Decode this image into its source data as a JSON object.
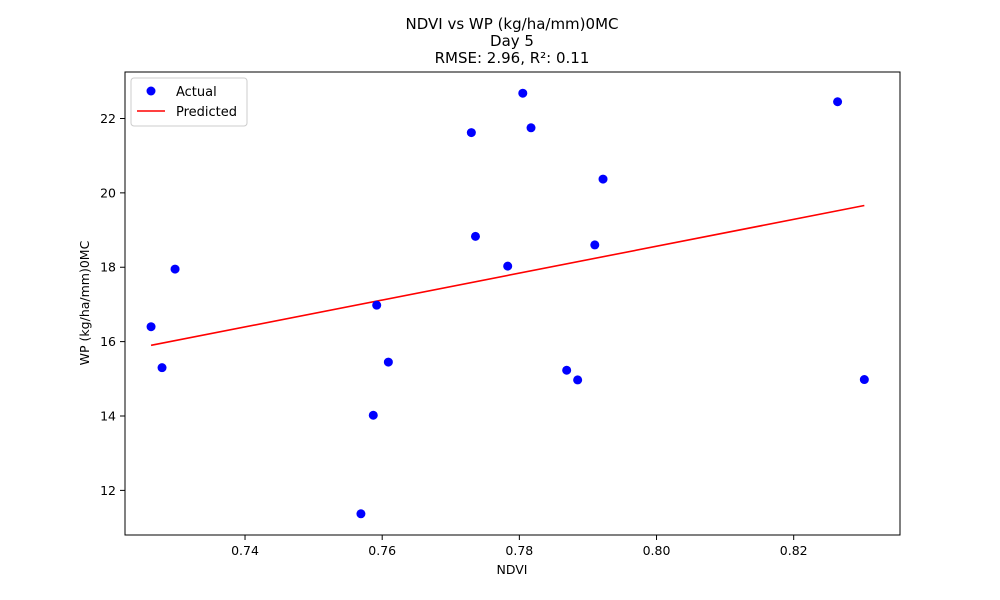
{
  "chart_data": {
    "type": "scatter",
    "title": [
      "NDVI vs WP (kg/ha/mm)0MC",
      "Day 5",
      "RMSE: 2.96, R²: 0.11"
    ],
    "xlabel": "NDVI",
    "ylabel": "WP (kg/ha/mm)0MC",
    "xlim": [
      0.7225,
      0.8355
    ],
    "ylim": [
      10.8,
      23.25
    ],
    "xticks": [
      0.74,
      0.76,
      0.78,
      0.8,
      0.82
    ],
    "xtick_labels": [
      "0.74",
      "0.76",
      "0.78",
      "0.80",
      "0.82"
    ],
    "yticks": [
      12,
      14,
      16,
      18,
      20,
      22
    ],
    "ytick_labels": [
      "12",
      "14",
      "16",
      "18",
      "20",
      "22"
    ],
    "grid": false,
    "legend_position": "top-left",
    "series": [
      {
        "name": "Actual",
        "kind": "scatter",
        "color": "#0000ff",
        "points": [
          {
            "x": 0.7263,
            "y": 16.4
          },
          {
            "x": 0.7279,
            "y": 15.3
          },
          {
            "x": 0.7298,
            "y": 17.95
          },
          {
            "x": 0.7569,
            "y": 11.37
          },
          {
            "x": 0.7587,
            "y": 14.02
          },
          {
            "x": 0.7592,
            "y": 16.98
          },
          {
            "x": 0.7609,
            "y": 15.45
          },
          {
            "x": 0.773,
            "y": 21.62
          },
          {
            "x": 0.7736,
            "y": 18.83
          },
          {
            "x": 0.7783,
            "y": 18.03
          },
          {
            "x": 0.7805,
            "y": 22.68
          },
          {
            "x": 0.7817,
            "y": 21.75
          },
          {
            "x": 0.7869,
            "y": 15.23
          },
          {
            "x": 0.7885,
            "y": 14.97
          },
          {
            "x": 0.791,
            "y": 18.6
          },
          {
            "x": 0.7922,
            "y": 20.37
          },
          {
            "x": 0.8264,
            "y": 22.45
          },
          {
            "x": 0.8303,
            "y": 14.98
          }
        ]
      },
      {
        "name": "Predicted",
        "kind": "line",
        "color": "#ff0000",
        "points": [
          {
            "x": 0.7263,
            "y": 15.9
          },
          {
            "x": 0.8303,
            "y": 19.66
          }
        ]
      }
    ]
  }
}
